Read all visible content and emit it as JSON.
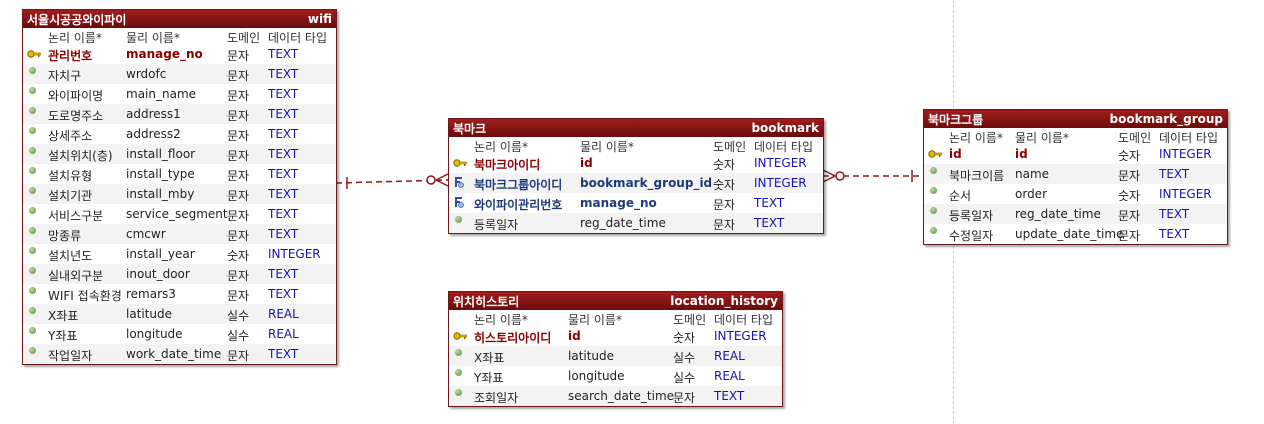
{
  "col_headers": {
    "logical": "논리 이름*",
    "physical": "물리 이름*",
    "domain": "도메인",
    "type": "데이터 타입"
  },
  "entities": {
    "wifi": {
      "title": "서울시공공와이파이",
      "table": "wifi",
      "rows": [
        {
          "kind": "pk",
          "logical": "관리번호",
          "physical": "manage_no",
          "domain": "문자",
          "type": "TEXT"
        },
        {
          "kind": "attr",
          "logical": "자치구",
          "physical": "wrdofc",
          "domain": "문자",
          "type": "TEXT"
        },
        {
          "kind": "attr",
          "logical": "와이파이명",
          "physical": "main_name",
          "domain": "문자",
          "type": "TEXT"
        },
        {
          "kind": "attr",
          "logical": "도로명주소",
          "physical": "address1",
          "domain": "문자",
          "type": "TEXT"
        },
        {
          "kind": "attr",
          "logical": "상세주소",
          "physical": "address2",
          "domain": "문자",
          "type": "TEXT"
        },
        {
          "kind": "attr",
          "logical": "설치위치(층)",
          "physical": "install_floor",
          "domain": "문자",
          "type": "TEXT"
        },
        {
          "kind": "attr",
          "logical": "설치유형",
          "physical": "install_type",
          "domain": "문자",
          "type": "TEXT"
        },
        {
          "kind": "attr",
          "logical": "설치기관",
          "physical": "install_mby",
          "domain": "문자",
          "type": "TEXT"
        },
        {
          "kind": "attr",
          "logical": "서비스구분",
          "physical": "service_segment",
          "domain": "문자",
          "type": "TEXT"
        },
        {
          "kind": "attr",
          "logical": "망종류",
          "physical": "cmcwr",
          "domain": "문자",
          "type": "TEXT"
        },
        {
          "kind": "attr",
          "logical": "설치년도",
          "physical": "install_year",
          "domain": "숫자",
          "type": "INTEGER"
        },
        {
          "kind": "attr",
          "logical": "실내외구분",
          "physical": "inout_door",
          "domain": "문자",
          "type": "TEXT"
        },
        {
          "kind": "attr",
          "logical": "WIFI 접속환경",
          "physical": "remars3",
          "domain": "문자",
          "type": "TEXT"
        },
        {
          "kind": "attr",
          "logical": "X좌표",
          "physical": "latitude",
          "domain": "실수",
          "type": "REAL"
        },
        {
          "kind": "attr",
          "logical": "Y좌표",
          "physical": "longitude",
          "domain": "실수",
          "type": "REAL"
        },
        {
          "kind": "attr",
          "logical": "작업일자",
          "physical": "work_date_time",
          "domain": "문자",
          "type": "TEXT"
        }
      ]
    },
    "bookmark": {
      "title": "북마크",
      "table": "bookmark",
      "rows": [
        {
          "kind": "pk",
          "logical": "북마크아이디",
          "physical": "id",
          "domain": "숫자",
          "type": "INTEGER"
        },
        {
          "kind": "fk",
          "logical": "북마크그룹아이디",
          "physical": "bookmark_group_id",
          "domain": "숫자",
          "type": "INTEGER"
        },
        {
          "kind": "fk",
          "logical": "와이파이관리번호",
          "physical": "manage_no",
          "domain": "문자",
          "type": "TEXT"
        },
        {
          "kind": "attr",
          "logical": "등록일자",
          "physical": "reg_date_time",
          "domain": "문자",
          "type": "TEXT"
        }
      ]
    },
    "bookmark_group": {
      "title": "북마크그룹",
      "table": "bookmark_group",
      "rows": [
        {
          "kind": "pk",
          "logical": "id",
          "physical": "id",
          "domain": "숫자",
          "type": "INTEGER"
        },
        {
          "kind": "attr",
          "logical": "북마크이름",
          "physical": "name",
          "domain": "문자",
          "type": "TEXT"
        },
        {
          "kind": "attr",
          "logical": "순서",
          "physical": "order",
          "domain": "숫자",
          "type": "INTEGER"
        },
        {
          "kind": "attr",
          "logical": "등록일자",
          "physical": "reg_date_time",
          "domain": "문자",
          "type": "TEXT"
        },
        {
          "kind": "attr",
          "logical": "수정일자",
          "physical": "update_date_time",
          "domain": "문자",
          "type": "TEXT"
        }
      ]
    },
    "location_history": {
      "title": "위치히스토리",
      "table": "location_history",
      "rows": [
        {
          "kind": "pk",
          "logical": "히스토리아이디",
          "physical": "id",
          "domain": "숫자",
          "type": "INTEGER"
        },
        {
          "kind": "attr",
          "logical": "X좌표",
          "physical": "latitude",
          "domain": "실수",
          "type": "REAL"
        },
        {
          "kind": "attr",
          "logical": "Y좌표",
          "physical": "longitude",
          "domain": "실수",
          "type": "REAL"
        },
        {
          "kind": "attr",
          "logical": "조회일자",
          "physical": "search_date_time",
          "domain": "문자",
          "type": "TEXT"
        }
      ]
    }
  },
  "relationships": [
    {
      "from": "wifi",
      "to": "bookmark",
      "from_end": "one",
      "to_end": "zero-or-many"
    },
    {
      "from": "bookmark_group",
      "to": "bookmark",
      "from_end": "one",
      "to_end": "zero-or-many"
    }
  ],
  "colors": {
    "header": "#8b0c0c",
    "pk_text": "#8b0000",
    "fk_text": "#1e3a7a",
    "type_text": "#1414b4",
    "line": "#8b1a1a"
  }
}
